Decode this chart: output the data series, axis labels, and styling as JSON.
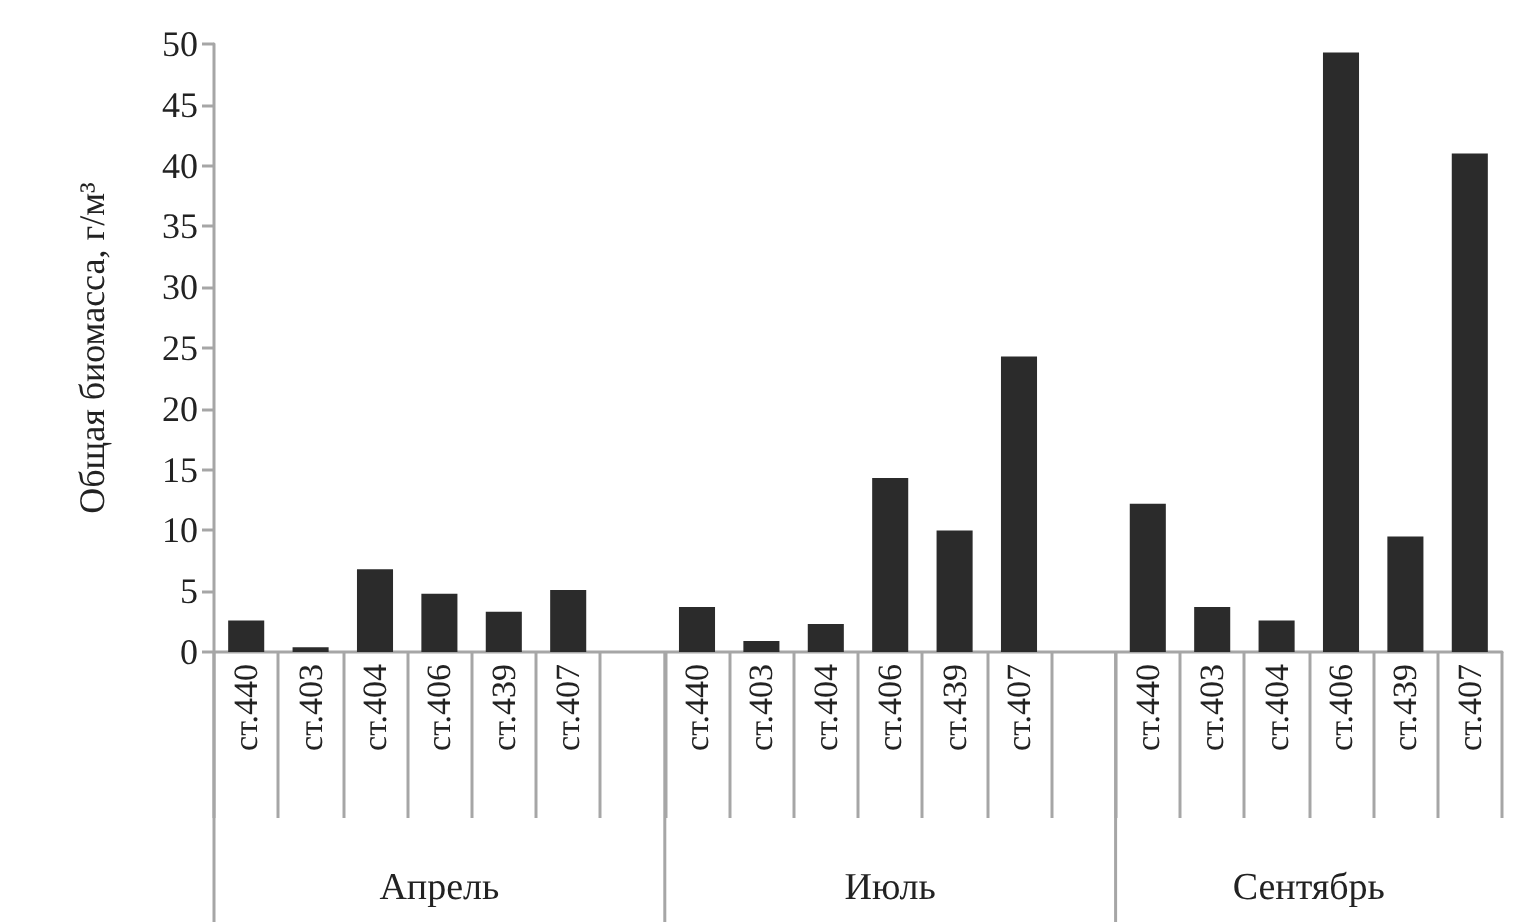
{
  "chart_data": {
    "type": "bar",
    "ylabel": "Общая биомасса, г/м³",
    "categories": [
      "ст.440",
      "ст.403",
      "ст.404",
      "ст.406",
      "ст.439",
      "ст.407",
      null,
      "ст.440",
      "ст.403",
      "ст.404",
      "ст.406",
      "ст.439",
      "ст.407",
      null,
      "ст.440",
      "ст.403",
      "ст.404",
      "ст.406",
      "ст.439",
      "ст.407"
    ],
    "values": [
      2.6,
      0.4,
      6.8,
      4.8,
      3.3,
      5.1,
      null,
      3.7,
      0.9,
      2.3,
      14.3,
      10.0,
      24.3,
      null,
      12.2,
      3.7,
      2.6,
      49.3,
      9.5,
      41.0
    ],
    "color": "#2b2b2b",
    "ylim": [
      0,
      50
    ],
    "yticks": [
      0,
      5,
      10,
      15,
      20,
      25,
      30,
      35,
      40,
      45,
      50
    ],
    "annotations": [
      "Апрель",
      "Июль",
      "Сентябрь"
    ],
    "grid": false
  }
}
